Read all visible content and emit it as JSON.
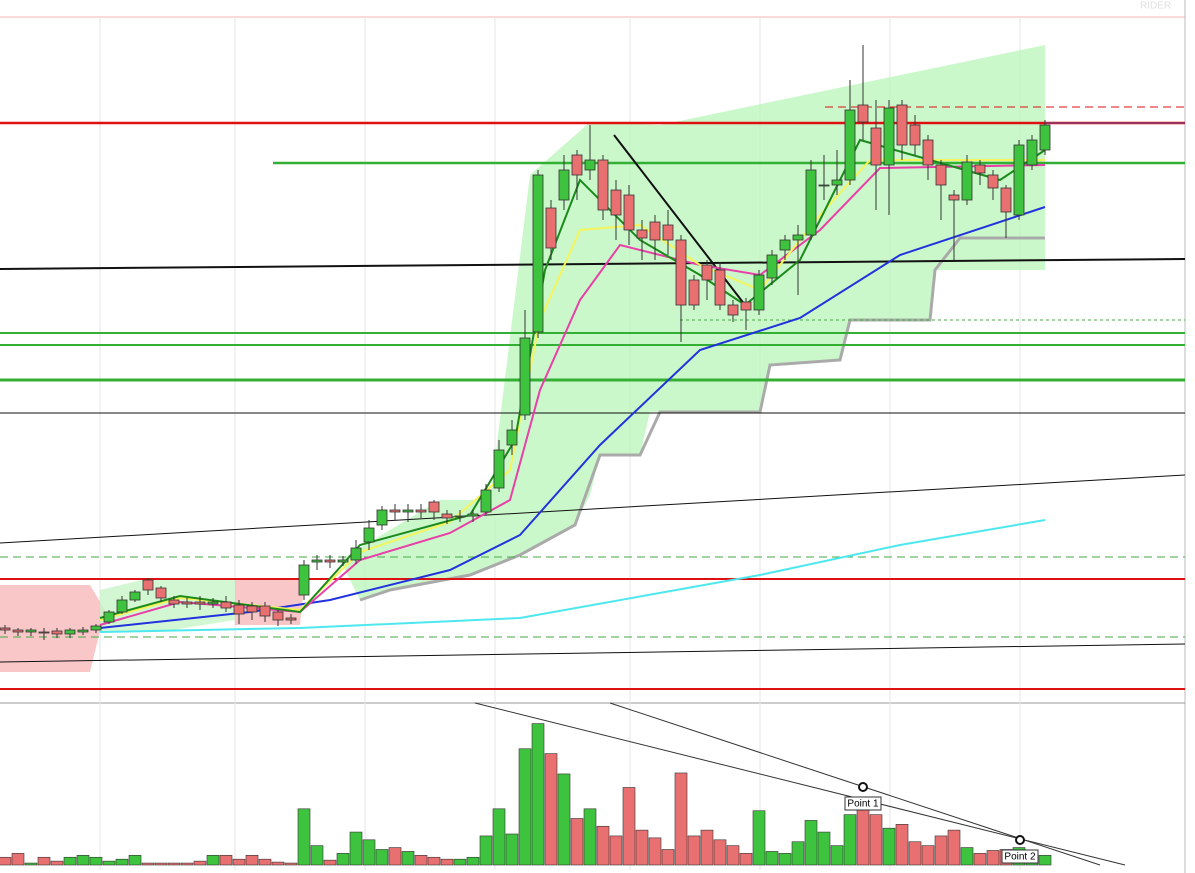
{
  "chart_data": {
    "type": "candlestick",
    "up_color": "#3ec33e",
    "down_color": "#e87070",
    "ylim": [
      0,
      682
    ],
    "candles": [
      [
        72,
        70,
        75,
        66
      ],
      [
        70,
        68,
        72,
        64
      ],
      [
        68,
        70,
        72,
        64
      ],
      [
        68,
        67,
        72,
        60
      ],
      [
        69,
        66,
        72,
        62
      ],
      [
        66,
        70,
        72,
        62
      ],
      [
        68,
        70,
        73,
        65
      ],
      [
        70,
        74,
        76,
        67
      ],
      [
        78,
        88,
        90,
        76
      ],
      [
        88,
        100,
        104,
        86
      ],
      [
        100,
        108,
        110,
        98
      ],
      [
        120,
        110,
        122,
        105
      ],
      [
        112,
        102,
        114,
        98
      ],
      [
        100,
        96,
        104,
        92
      ],
      [
        98,
        96,
        102,
        92
      ],
      [
        98,
        96,
        104,
        90
      ],
      [
        96,
        98,
        102,
        92
      ],
      [
        98,
        92,
        104,
        88
      ],
      [
        95,
        86,
        100,
        76
      ],
      [
        94,
        88,
        98,
        80
      ],
      [
        94,
        84,
        98,
        78
      ],
      [
        88,
        80,
        90,
        74
      ],
      [
        82,
        80,
        86,
        76
      ],
      [
        105,
        135,
        140,
        100
      ],
      [
        138,
        140,
        145,
        130
      ],
      [
        140,
        138,
        145,
        132
      ],
      [
        138,
        140,
        144,
        134
      ],
      [
        140,
        152,
        160,
        136
      ],
      [
        158,
        172,
        180,
        150
      ],
      [
        175,
        190,
        194,
        170
      ],
      [
        190,
        188,
        196,
        180
      ],
      [
        188,
        190,
        196,
        178
      ],
      [
        190,
        188,
        196,
        182
      ],
      [
        198,
        188,
        200,
        180
      ],
      [
        186,
        182,
        190,
        176
      ],
      [
        184,
        184,
        190,
        178
      ],
      [
        184,
        186,
        190,
        178
      ],
      [
        188,
        210,
        216,
        186
      ],
      [
        212,
        250,
        260,
        208
      ],
      [
        255,
        270,
        280,
        245
      ],
      [
        285,
        362,
        390,
        280
      ],
      [
        368,
        525,
        530,
        362
      ],
      [
        492,
        452,
        500,
        440
      ],
      [
        500,
        530,
        545,
        490
      ],
      [
        545,
        525,
        550,
        500
      ],
      [
        530,
        540,
        575,
        520
      ],
      [
        540,
        490,
        545,
        480
      ],
      [
        510,
        485,
        520,
        460
      ],
      [
        505,
        470,
        515,
        455
      ],
      [
        470,
        462,
        480,
        440
      ],
      [
        478,
        460,
        485,
        440
      ],
      [
        475,
        460,
        490,
        445
      ],
      [
        460,
        395,
        465,
        358
      ],
      [
        420,
        395,
        425,
        390
      ],
      [
        435,
        420,
        440,
        400
      ],
      [
        430,
        395,
        438,
        390
      ],
      [
        395,
        385,
        400,
        378
      ],
      [
        398,
        390,
        402,
        370
      ],
      [
        390,
        425,
        430,
        385
      ],
      [
        422,
        445,
        450,
        415
      ],
      [
        450,
        460,
        465,
        440
      ],
      [
        460,
        465,
        475,
        405
      ],
      [
        465,
        530,
        540,
        460
      ],
      [
        515,
        515,
        545,
        500
      ],
      [
        515,
        520,
        550,
        505
      ],
      [
        520,
        590,
        620,
        515
      ],
      [
        595,
        578,
        655,
        560
      ],
      [
        572,
        535,
        600,
        490
      ],
      [
        535,
        592,
        600,
        485
      ],
      [
        595,
        555,
        600,
        540
      ],
      [
        575,
        555,
        585,
        545
      ],
      [
        560,
        535,
        565,
        520
      ],
      [
        535,
        515,
        540,
        480
      ],
      [
        505,
        500,
        510,
        440
      ],
      [
        500,
        538,
        545,
        495
      ],
      [
        535,
        527,
        540,
        515
      ],
      [
        525,
        512,
        530,
        500
      ],
      [
        512,
        488,
        515,
        462
      ],
      [
        485,
        555,
        560,
        480
      ],
      [
        535,
        560,
        565,
        530
      ],
      [
        550,
        575,
        580,
        545
      ]
    ],
    "volume_ylim": [
      0,
      160
    ],
    "volume": [
      8,
      12,
      2,
      8,
      4,
      8,
      10,
      8,
      4,
      6,
      10,
      2,
      2,
      2,
      2,
      4,
      10,
      10,
      6,
      10,
      6,
      3,
      2,
      58,
      20,
      5,
      12,
      34,
      26,
      16,
      18,
      14,
      10,
      8,
      6,
      6,
      8,
      30,
      58,
      32,
      120,
      146,
      115,
      94,
      48,
      58,
      40,
      30,
      80,
      36,
      28,
      16,
      95,
      30,
      36,
      26,
      20,
      12,
      56,
      14,
      12,
      24,
      46,
      34,
      20,
      52,
      68,
      52,
      38,
      42,
      24,
      20,
      30,
      36,
      18,
      12,
      15,
      16,
      18,
      8,
      10
    ],
    "annotations": [
      "Point 1",
      "Point 2"
    ]
  }
}
